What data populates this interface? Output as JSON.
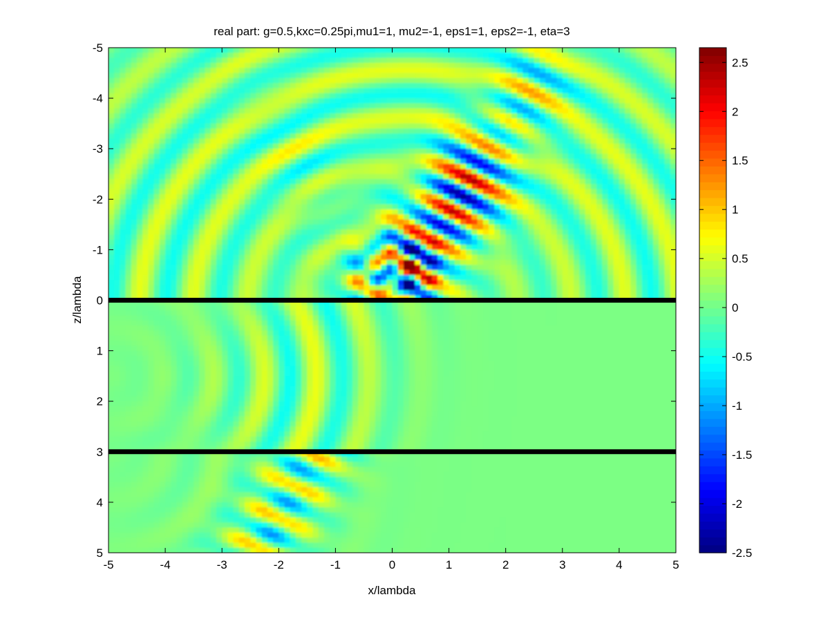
{
  "chart_data": {
    "type": "heatmap",
    "title": "real part: g=0.5,kxc=0.25pi,mu1=1, mu2=-1, eps1=1, eps2=-1, eta=3",
    "xlabel": "x/lambda",
    "ylabel": "z/lambda",
    "xlim": [
      -5,
      5
    ],
    "ylim": [
      -5,
      5
    ],
    "y_direction": "reversed",
    "xticks": [
      -5,
      -4,
      -3,
      -2,
      -1,
      0,
      1,
      2,
      3,
      4,
      5
    ],
    "yticks": [
      -5,
      -4,
      -3,
      -2,
      -1,
      0,
      1,
      2,
      3,
      4,
      5
    ],
    "colormap": "jet",
    "colorbar": {
      "range": [
        -2.5,
        2.65
      ],
      "ticks": [
        -2.5,
        -2,
        -1.5,
        -1,
        -0.5,
        0,
        0.5,
        1,
        1.5,
        2,
        2.5
      ],
      "tick_labels": [
        "-2.5",
        "-2",
        "-1.5",
        "-1",
        "-0.5",
        "0",
        "0.5",
        "1",
        "1.5",
        "2",
        "2.5"
      ]
    },
    "interfaces_z": [
      0,
      3
    ],
    "interface_color": "#000000",
    "background_value": 0.05
  }
}
